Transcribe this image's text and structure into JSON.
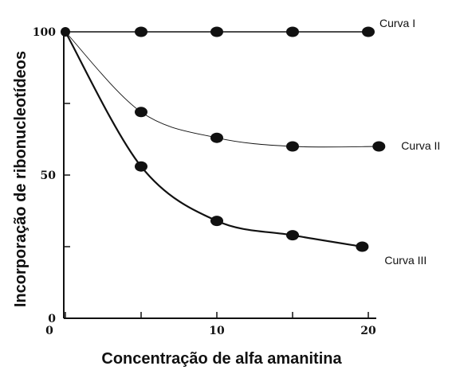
{
  "chart_data": {
    "type": "line",
    "xlabel": "Concentração de alfa amanitina",
    "ylabel": "Incorporação de ribonucleotídeos",
    "xlim": [
      0,
      20
    ],
    "ylim": [
      0,
      100
    ],
    "x_ticks": [
      {
        "value": 0,
        "label": "0"
      },
      {
        "value": 5,
        "label": ""
      },
      {
        "value": 10,
        "label": "10"
      },
      {
        "value": 15,
        "label": ""
      },
      {
        "value": 20,
        "label": "20"
      }
    ],
    "y_ticks": [
      {
        "value": 0,
        "label": "0"
      },
      {
        "value": 25,
        "label": ""
      },
      {
        "value": 50,
        "label": "50"
      },
      {
        "value": 75,
        "label": ""
      },
      {
        "value": 100,
        "label": "100"
      }
    ],
    "grid": false,
    "series": [
      {
        "name": "Curva I",
        "x": [
          0,
          5,
          10,
          15,
          20
        ],
        "y": [
          100,
          100,
          100,
          100,
          100
        ],
        "stroke_width": 1.6
      },
      {
        "name": "Curva II",
        "x": [
          0,
          5,
          10,
          15,
          20.7
        ],
        "y": [
          100,
          72,
          63,
          60,
          60
        ],
        "stroke_width": 0.9
      },
      {
        "name": "Curva III",
        "x": [
          0,
          5,
          10,
          15,
          19.6
        ],
        "y": [
          100,
          53,
          34,
          29,
          25
        ],
        "stroke_width": 2.2
      }
    ]
  }
}
